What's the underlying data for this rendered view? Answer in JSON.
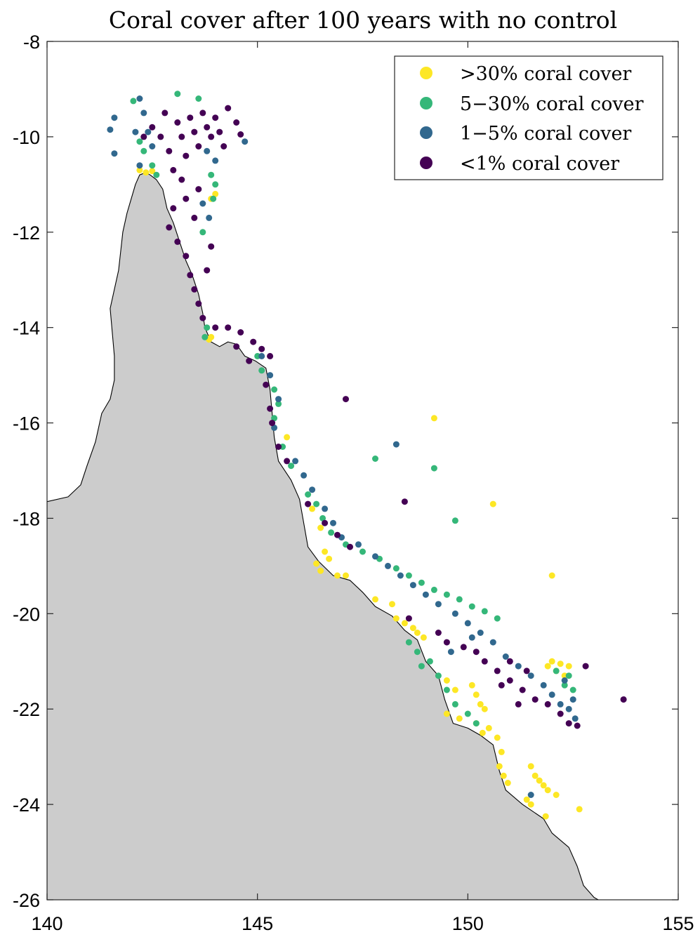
{
  "chart_data": {
    "type": "scatter",
    "title": "Coral cover after 100 years with no control",
    "xlabel": "",
    "ylabel": "",
    "xlim": [
      140,
      155
    ],
    "ylim": [
      -26,
      -8
    ],
    "x_ticks": [
      140,
      145,
      150,
      155
    ],
    "y_ticks": [
      -8,
      -10,
      -12,
      -14,
      -16,
      -18,
      -20,
      -22,
      -24,
      -26
    ],
    "x_tick_labels": [
      "140",
      "145",
      "150",
      "155"
    ],
    "y_tick_labels": [
      "-8",
      "-10",
      "-12",
      "-14",
      "-16",
      "-18",
      "-20",
      "-22",
      "-24",
      "-26"
    ],
    "grid": false,
    "legend_position": "top-right",
    "land_color": "#cccccc",
    "coastline": [
      [
        140.0,
        -17.65
      ],
      [
        140.5,
        -17.55
      ],
      [
        140.8,
        -17.3
      ],
      [
        140.95,
        -16.9
      ],
      [
        141.15,
        -16.4
      ],
      [
        141.3,
        -15.8
      ],
      [
        141.5,
        -15.5
      ],
      [
        141.6,
        -15.1
      ],
      [
        141.6,
        -14.6
      ],
      [
        141.55,
        -14.1
      ],
      [
        141.5,
        -13.6
      ],
      [
        141.6,
        -13.2
      ],
      [
        141.7,
        -12.8
      ],
      [
        141.75,
        -12.4
      ],
      [
        141.8,
        -12.0
      ],
      [
        141.9,
        -11.6
      ],
      [
        142.0,
        -11.3
      ],
      [
        142.1,
        -11.0
      ],
      [
        142.2,
        -10.8
      ],
      [
        142.35,
        -10.75
      ],
      [
        142.45,
        -10.8
      ],
      [
        142.6,
        -10.9
      ],
      [
        142.75,
        -11.1
      ],
      [
        142.85,
        -11.5
      ],
      [
        143.0,
        -11.8
      ],
      [
        143.15,
        -12.2
      ],
      [
        143.3,
        -12.6
      ],
      [
        143.45,
        -12.9
      ],
      [
        143.6,
        -13.3
      ],
      [
        143.7,
        -13.7
      ],
      [
        143.75,
        -14.0
      ],
      [
        143.9,
        -14.3
      ],
      [
        144.1,
        -14.4
      ],
      [
        144.3,
        -14.3
      ],
      [
        144.5,
        -14.35
      ],
      [
        144.7,
        -14.6
      ],
      [
        144.95,
        -14.7
      ],
      [
        145.2,
        -14.85
      ],
      [
        145.3,
        -15.3
      ],
      [
        145.35,
        -15.8
      ],
      [
        145.4,
        -16.3
      ],
      [
        145.5,
        -16.8
      ],
      [
        145.8,
        -17.2
      ],
      [
        146.0,
        -17.6
      ],
      [
        146.1,
        -18.1
      ],
      [
        146.2,
        -18.6
      ],
      [
        146.45,
        -18.9
      ],
      [
        146.8,
        -19.2
      ],
      [
        147.2,
        -19.3
      ],
      [
        147.5,
        -19.55
      ],
      [
        147.8,
        -19.85
      ],
      [
        148.2,
        -20.05
      ],
      [
        148.5,
        -20.35
      ],
      [
        148.8,
        -20.55
      ],
      [
        149.0,
        -21.0
      ],
      [
        149.3,
        -21.3
      ],
      [
        149.45,
        -21.8
      ],
      [
        149.65,
        -22.3
      ],
      [
        150.0,
        -22.4
      ],
      [
        150.3,
        -22.55
      ],
      [
        150.6,
        -22.75
      ],
      [
        150.75,
        -23.3
      ],
      [
        150.9,
        -23.7
      ],
      [
        151.3,
        -24.0
      ],
      [
        151.8,
        -24.3
      ],
      [
        152.0,
        -24.6
      ],
      [
        152.4,
        -24.9
      ],
      [
        152.6,
        -25.3
      ],
      [
        152.75,
        -25.7
      ],
      [
        153.0,
        -25.95
      ],
      [
        153.1,
        -26.0
      ],
      [
        140.0,
        -26.0
      ]
    ],
    "series": [
      {
        "name": ">30% coral cover",
        "color": "#fde725",
        "points": [
          [
            142.2,
            -10.7
          ],
          [
            142.5,
            -10.72
          ],
          [
            142.35,
            -10.75
          ],
          [
            144.0,
            -11.2
          ],
          [
            143.9,
            -11.3
          ],
          [
            143.85,
            -14.25
          ],
          [
            143.9,
            -14.2
          ],
          [
            145.7,
            -16.3
          ],
          [
            146.3,
            -17.8
          ],
          [
            146.5,
            -18.2
          ],
          [
            146.6,
            -18.7
          ],
          [
            146.4,
            -18.95
          ],
          [
            146.7,
            -18.85
          ],
          [
            146.5,
            -19.1
          ],
          [
            146.9,
            -19.2
          ],
          [
            147.1,
            -19.2
          ],
          [
            147.8,
            -19.7
          ],
          [
            148.2,
            -19.8
          ],
          [
            148.3,
            -20.1
          ],
          [
            148.5,
            -20.2
          ],
          [
            148.7,
            -20.3
          ],
          [
            148.8,
            -20.4
          ],
          [
            148.95,
            -20.5
          ],
          [
            149.5,
            -21.4
          ],
          [
            149.7,
            -21.6
          ],
          [
            149.5,
            -22.1
          ],
          [
            149.8,
            -22.2
          ],
          [
            150.1,
            -21.5
          ],
          [
            150.2,
            -21.7
          ],
          [
            150.3,
            -21.9
          ],
          [
            150.4,
            -22.0
          ],
          [
            150.2,
            -22.3
          ],
          [
            150.35,
            -22.5
          ],
          [
            150.5,
            -22.4
          ],
          [
            150.7,
            -22.6
          ],
          [
            150.8,
            -22.9
          ],
          [
            150.75,
            -23.2
          ],
          [
            150.85,
            -23.4
          ],
          [
            150.95,
            -23.55
          ],
          [
            151.5,
            -23.2
          ],
          [
            151.6,
            -23.4
          ],
          [
            151.7,
            -23.5
          ],
          [
            151.8,
            -23.6
          ],
          [
            151.9,
            -23.7
          ],
          [
            152.1,
            -23.8
          ],
          [
            151.4,
            -23.9
          ],
          [
            151.5,
            -24.0
          ],
          [
            151.85,
            -24.25
          ],
          [
            152.65,
            -24.1
          ],
          [
            149.2,
            -15.9
          ],
          [
            150.6,
            -17.7
          ],
          [
            152.0,
            -19.2
          ],
          [
            152.0,
            -21.0
          ],
          [
            152.2,
            -21.05
          ],
          [
            152.4,
            -21.1
          ],
          [
            152.1,
            -21.2
          ],
          [
            152.3,
            -21.3
          ],
          [
            151.9,
            -21.1
          ]
        ]
      },
      {
        "name": "5−30% coral cover",
        "color": "#35b779",
        "points": [
          [
            142.05,
            -9.25
          ],
          [
            142.2,
            -10.1
          ],
          [
            142.3,
            -10.3
          ],
          [
            142.5,
            -10.6
          ],
          [
            142.6,
            -10.8
          ],
          [
            143.1,
            -9.1
          ],
          [
            143.6,
            -9.2
          ],
          [
            143.9,
            -10.8
          ],
          [
            144.0,
            -11.0
          ],
          [
            143.95,
            -11.3
          ],
          [
            143.7,
            -12.0
          ],
          [
            143.8,
            -14.0
          ],
          [
            143.75,
            -14.2
          ],
          [
            145.0,
            -14.6
          ],
          [
            145.1,
            -14.9
          ],
          [
            145.4,
            -15.3
          ],
          [
            145.5,
            -15.6
          ],
          [
            145.4,
            -15.9
          ],
          [
            145.6,
            -16.5
          ],
          [
            145.8,
            -16.9
          ],
          [
            146.2,
            -17.5
          ],
          [
            146.4,
            -17.7
          ],
          [
            146.55,
            -18.0
          ],
          [
            146.75,
            -18.3
          ],
          [
            147.1,
            -18.55
          ],
          [
            147.5,
            -18.7
          ],
          [
            147.9,
            -18.85
          ],
          [
            148.3,
            -19.05
          ],
          [
            148.6,
            -19.2
          ],
          [
            148.9,
            -19.35
          ],
          [
            149.2,
            -19.5
          ],
          [
            149.5,
            -19.6
          ],
          [
            149.8,
            -19.7
          ],
          [
            150.1,
            -19.85
          ],
          [
            150.4,
            -19.95
          ],
          [
            150.7,
            -20.1
          ],
          [
            148.6,
            -20.6
          ],
          [
            148.8,
            -20.8
          ],
          [
            148.9,
            -21.1
          ],
          [
            149.1,
            -21.0
          ],
          [
            149.3,
            -21.3
          ],
          [
            149.5,
            -21.6
          ],
          [
            149.7,
            -21.9
          ],
          [
            150.0,
            -22.1
          ],
          [
            150.2,
            -22.3
          ],
          [
            147.8,
            -16.75
          ],
          [
            149.2,
            -16.95
          ],
          [
            149.7,
            -18.05
          ],
          [
            152.1,
            -21.2
          ],
          [
            152.3,
            -21.5
          ],
          [
            152.4,
            -21.3
          ],
          [
            152.5,
            -21.6
          ]
        ]
      },
      {
        "name": "1−5% coral cover",
        "color": "#31688e",
        "points": [
          [
            141.5,
            -9.85
          ],
          [
            141.6,
            -9.6
          ],
          [
            141.6,
            -10.35
          ],
          [
            142.1,
            -9.9
          ],
          [
            142.2,
            -9.2
          ],
          [
            142.3,
            -9.5
          ],
          [
            142.4,
            -9.9
          ],
          [
            142.5,
            -10.2
          ],
          [
            142.2,
            -10.6
          ],
          [
            143.8,
            -10.3
          ],
          [
            144.0,
            -10.5
          ],
          [
            143.7,
            -11.4
          ],
          [
            143.85,
            -11.7
          ],
          [
            144.7,
            -10.1
          ],
          [
            145.1,
            -14.6
          ],
          [
            145.3,
            -15.0
          ],
          [
            145.5,
            -15.5
          ],
          [
            145.4,
            -16.1
          ],
          [
            145.9,
            -16.8
          ],
          [
            146.1,
            -17.1
          ],
          [
            146.3,
            -17.4
          ],
          [
            146.6,
            -17.8
          ],
          [
            146.8,
            -18.1
          ],
          [
            147.0,
            -18.4
          ],
          [
            147.4,
            -18.55
          ],
          [
            147.8,
            -18.8
          ],
          [
            148.1,
            -19.0
          ],
          [
            148.4,
            -19.2
          ],
          [
            148.7,
            -19.4
          ],
          [
            149.0,
            -19.6
          ],
          [
            149.3,
            -19.8
          ],
          [
            149.7,
            -20.0
          ],
          [
            150.0,
            -20.2
          ],
          [
            150.3,
            -20.4
          ],
          [
            150.6,
            -20.6
          ],
          [
            150.9,
            -20.9
          ],
          [
            151.2,
            -21.1
          ],
          [
            151.5,
            -21.3
          ],
          [
            151.8,
            -21.5
          ],
          [
            152.0,
            -21.7
          ],
          [
            152.2,
            -21.9
          ],
          [
            152.4,
            -22.0
          ],
          [
            152.55,
            -22.2
          ],
          [
            152.3,
            -21.4
          ],
          [
            152.5,
            -21.8
          ],
          [
            148.3,
            -16.45
          ],
          [
            149.6,
            -20.8
          ],
          [
            150.1,
            -20.5
          ],
          [
            151.5,
            -23.8
          ]
        ]
      },
      {
        "name": "<1% coral cover",
        "color": "#440154",
        "points": [
          [
            142.3,
            -10.0
          ],
          [
            142.5,
            -9.8
          ],
          [
            142.8,
            -9.5
          ],
          [
            142.7,
            -10.0
          ],
          [
            142.9,
            -10.3
          ],
          [
            143.0,
            -10.7
          ],
          [
            143.1,
            -9.7
          ],
          [
            143.2,
            -10.0
          ],
          [
            143.3,
            -10.4
          ],
          [
            143.4,
            -9.6
          ],
          [
            143.5,
            -9.9
          ],
          [
            143.6,
            -10.2
          ],
          [
            143.7,
            -9.5
          ],
          [
            143.8,
            -9.8
          ],
          [
            143.9,
            -10.0
          ],
          [
            144.0,
            -9.6
          ],
          [
            144.1,
            -9.9
          ],
          [
            144.2,
            -10.2
          ],
          [
            144.3,
            -9.4
          ],
          [
            144.5,
            -9.7
          ],
          [
            144.6,
            -9.95
          ],
          [
            143.2,
            -10.9
          ],
          [
            143.3,
            -11.3
          ],
          [
            143.0,
            -11.5
          ],
          [
            142.9,
            -11.9
          ],
          [
            143.1,
            -12.2
          ],
          [
            143.3,
            -12.5
          ],
          [
            143.4,
            -12.9
          ],
          [
            143.5,
            -13.2
          ],
          [
            143.6,
            -13.5
          ],
          [
            143.7,
            -13.8
          ],
          [
            143.8,
            -12.8
          ],
          [
            143.9,
            -12.3
          ],
          [
            143.6,
            -11.1
          ],
          [
            143.5,
            -11.7
          ],
          [
            144.0,
            -14.0
          ],
          [
            144.3,
            -14.0
          ],
          [
            144.6,
            -14.1
          ],
          [
            144.9,
            -14.3
          ],
          [
            145.1,
            -14.45
          ],
          [
            145.3,
            -14.6
          ],
          [
            144.5,
            -14.4
          ],
          [
            144.8,
            -14.7
          ],
          [
            145.2,
            -15.2
          ],
          [
            145.3,
            -15.7
          ],
          [
            145.35,
            -16.0
          ],
          [
            145.5,
            -16.5
          ],
          [
            145.7,
            -16.8
          ],
          [
            146.2,
            -17.7
          ],
          [
            146.6,
            -18.1
          ],
          [
            146.9,
            -18.35
          ],
          [
            147.2,
            -18.6
          ],
          [
            148.6,
            -20.1
          ],
          [
            149.3,
            -20.4
          ],
          [
            149.5,
            -20.6
          ],
          [
            149.9,
            -20.7
          ],
          [
            150.2,
            -20.8
          ],
          [
            150.4,
            -21.0
          ],
          [
            150.7,
            -21.2
          ],
          [
            151.0,
            -21.4
          ],
          [
            151.3,
            -21.6
          ],
          [
            151.6,
            -21.8
          ],
          [
            151.9,
            -21.9
          ],
          [
            152.2,
            -22.1
          ],
          [
            152.4,
            -22.3
          ],
          [
            152.6,
            -22.35
          ],
          [
            152.8,
            -21.1
          ],
          [
            151.0,
            -21.0
          ],
          [
            150.8,
            -21.5
          ],
          [
            151.4,
            -21.2
          ],
          [
            153.7,
            -21.8
          ],
          [
            147.1,
            -15.5
          ],
          [
            148.5,
            -17.65
          ],
          [
            151.2,
            -21.9
          ]
        ]
      }
    ]
  }
}
